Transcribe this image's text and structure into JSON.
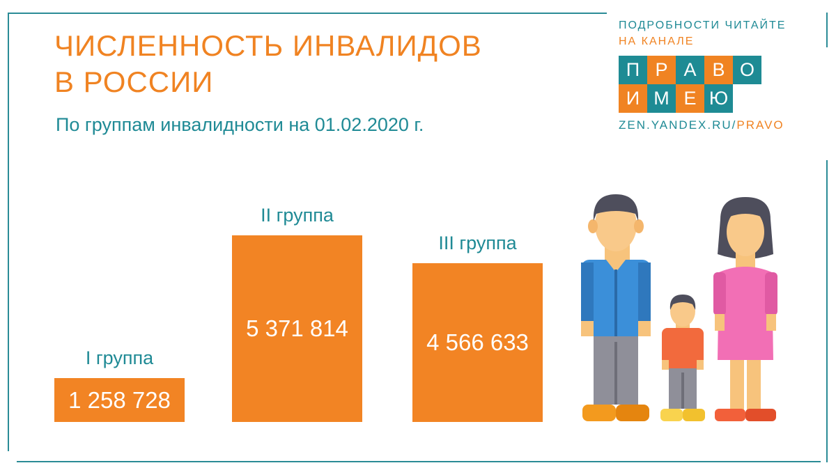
{
  "header": {
    "title_line1": "ЧИСЛЕННОСТЬ ИНВАЛИДОВ",
    "title_line2": "В РОССИИ",
    "subtitle": "По группам инвалидности на 01.02.2020 г."
  },
  "promo": {
    "line1": "ПОДРОБНОСТИ ЧИТАЙТЕ",
    "line2": "НА КАНАЛЕ",
    "logo_row1": [
      "П",
      "Р",
      "А",
      "В",
      "О"
    ],
    "logo_row2": [
      "И",
      "М",
      "Е",
      "Ю"
    ],
    "url_main": "ZEN.YANDEX.RU/",
    "url_accent": "PRAVO"
  },
  "colors": {
    "accent_orange": "#f08322",
    "accent_teal": "#1f8a95"
  },
  "chart_data": {
    "type": "bar",
    "title": "ЧИСЛЕННОСТЬ ИНВАЛИДОВ В РОССИИ",
    "subtitle": "По группам инвалидности на 01.02.2020 г.",
    "categories": [
      "I группа",
      "II группа",
      "III группа"
    ],
    "values": [
      1258728,
      5371814,
      4566633
    ],
    "value_labels": [
      "1 258 728",
      "5 371 814",
      "4 566 633"
    ],
    "grid": false,
    "legend": "none"
  },
  "illustration": {
    "icon": "family-icon"
  }
}
